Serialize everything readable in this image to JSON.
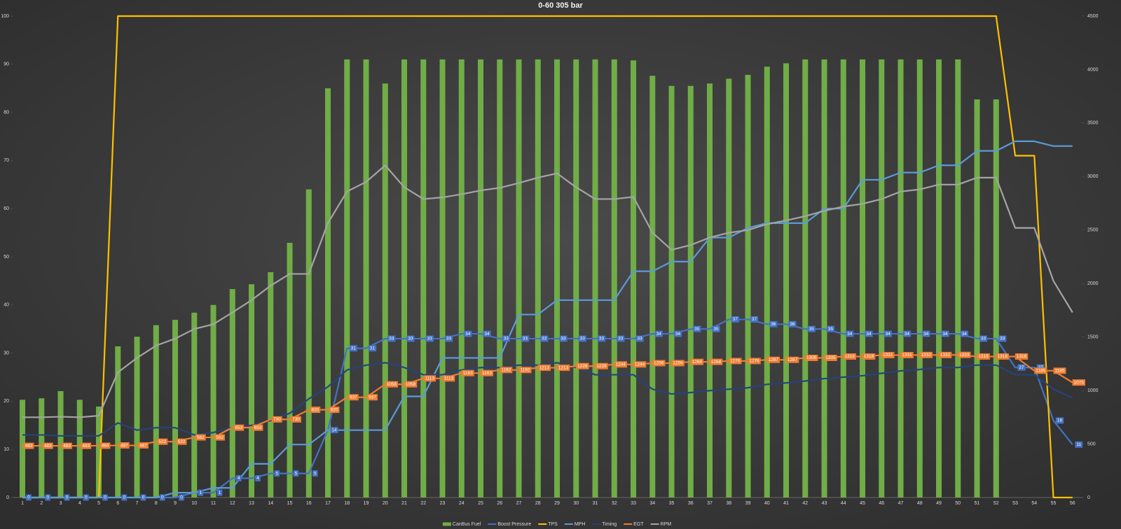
{
  "chart_data": {
    "type": "combo",
    "title": "0-60 305 bar",
    "categories": [
      "1",
      "2",
      "3",
      "4",
      "5",
      "6",
      "7",
      "8",
      "9",
      "10",
      "11",
      "12",
      "13",
      "14",
      "15",
      "16",
      "17",
      "18",
      "19",
      "20",
      "21",
      "22",
      "23",
      "24",
      "25",
      "26",
      "27",
      "28",
      "29",
      "30",
      "31",
      "32",
      "33",
      "34",
      "35",
      "36",
      "37",
      "38",
      "39",
      "40",
      "41",
      "42",
      "43",
      "44",
      "45",
      "46",
      "47",
      "48",
      "49",
      "50",
      "51",
      "52",
      "53",
      "54",
      "55",
      "56"
    ],
    "ylim": [
      0,
      100
    ],
    "yticks": [
      0,
      10,
      20,
      30,
      40,
      50,
      60,
      70,
      80,
      90,
      100
    ],
    "y2lim": [
      0,
      4500
    ],
    "y2ticks": [
      0,
      500,
      1000,
      1500,
      2000,
      2500,
      3000,
      3500,
      4000,
      4500
    ],
    "legend": "bottom",
    "series": [
      {
        "name": "CanBus Fuel",
        "type": "bar",
        "color": "#70ad47",
        "values": [
          20.3,
          20.6,
          22.1,
          20.3,
          18.9,
          31.4,
          33.4,
          35.8,
          36.9,
          38.4,
          40,
          43.3,
          44.3,
          46.8,
          52.9,
          64,
          85,
          91,
          91,
          86,
          91,
          91,
          91,
          91,
          91,
          91,
          91,
          91,
          91,
          91,
          91,
          91,
          90.8,
          87.6,
          85.5,
          85.5,
          86,
          87,
          87.8,
          89.5,
          90.2,
          91,
          91,
          91,
          91,
          91,
          91,
          91,
          91,
          91,
          82.7,
          82.7,
          null,
          null,
          null,
          null
        ]
      },
      {
        "name": "Boost Pressure",
        "type": "line",
        "color": "#4472c4",
        "data_labels": true,
        "values": [
          0,
          0,
          0,
          0,
          0,
          0,
          0,
          0,
          0,
          1,
          1,
          4,
          4,
          5,
          5,
          5,
          14,
          31,
          31,
          33,
          33,
          33,
          33,
          34,
          34,
          33,
          33,
          33,
          33,
          33,
          33,
          33,
          33,
          34,
          34,
          35,
          35,
          37,
          37,
          36,
          36,
          35,
          35,
          34,
          34,
          34,
          34,
          34,
          34,
          34,
          33,
          33,
          27,
          27,
          16,
          11
        ]
      },
      {
        "name": "TPS",
        "type": "line",
        "color": "#ffc000",
        "values": [
          0,
          0,
          0,
          0,
          0,
          100,
          100,
          100,
          100,
          100,
          100,
          100,
          100,
          100,
          100,
          100,
          100,
          100,
          100,
          100,
          100,
          100,
          100,
          100,
          100,
          100,
          100,
          100,
          100,
          100,
          100,
          100,
          100,
          100,
          100,
          100,
          100,
          100,
          100,
          100,
          100,
          100,
          100,
          100,
          100,
          100,
          100,
          100,
          100,
          100,
          100,
          100,
          71,
          71,
          0,
          0
        ]
      },
      {
        "name": "MPH",
        "type": "line",
        "color": "#5b9bd5",
        "values": [
          0,
          0,
          0,
          0,
          0,
          0,
          0,
          0,
          1,
          1,
          2,
          2,
          7,
          7,
          11,
          11,
          14,
          14,
          14,
          14,
          21,
          21,
          29,
          29,
          29,
          29,
          38,
          38,
          41,
          41,
          41,
          41,
          47,
          47,
          49,
          49,
          54,
          54,
          56,
          57,
          57,
          57,
          60,
          60,
          66,
          66,
          67.5,
          67.5,
          69,
          69,
          72,
          72,
          74,
          74,
          73,
          73
        ]
      },
      {
        "name": "Timing",
        "type": "line",
        "color": "#264478",
        "values": [
          13,
          13,
          12.8,
          12.8,
          12.8,
          15.5,
          14,
          14.5,
          14.5,
          13,
          13.5,
          14.5,
          15,
          16,
          17.5,
          20.5,
          23,
          26.5,
          27.5,
          28,
          27,
          25.5,
          25.5,
          26.5,
          27,
          27,
          27.5,
          27.5,
          28,
          27,
          25.5,
          25.5,
          25.5,
          22.5,
          21.5,
          21.8,
          22.2,
          22.5,
          22.8,
          23.5,
          23.8,
          24.2,
          24.7,
          25,
          25.3,
          25.8,
          26.3,
          26.6,
          27,
          27,
          27.5,
          27.5,
          25.5,
          25.5,
          22.5,
          20.7
        ]
      },
      {
        "name": "EGT",
        "type": "line",
        "color": "#ed7d31",
        "axis": "y2",
        "data_labels": true,
        "values": [
          483,
          483,
          483,
          483,
          484,
          487,
          487,
          522,
          522,
          562,
          562,
          653,
          653,
          730,
          730,
          820,
          820,
          937,
          937,
          1058,
          1058,
          1113,
          1113,
          1163,
          1163,
          1192,
          1192,
          1213,
          1213,
          1228,
          1228,
          1244,
          1244,
          1256,
          1256,
          1268,
          1268,
          1276,
          1276,
          1287,
          1287,
          1305,
          1305,
          1318,
          1318,
          1331,
          1331,
          1332,
          1332,
          1333,
          1318,
          1318,
          1318,
          1185,
          1185,
          1075
        ]
      },
      {
        "name": "RPM",
        "type": "line",
        "color": "#a5a5a5",
        "axis": "y2",
        "values": [
          750,
          750,
          755,
          750,
          765,
          1170,
          1305,
          1420,
          1485,
          1575,
          1620,
          1730,
          1845,
          1980,
          2090,
          2090,
          2565,
          2860,
          2950,
          3105,
          2900,
          2790,
          2805,
          2835,
          2870,
          2895,
          2940,
          2990,
          3030,
          2900,
          2790,
          2790,
          2810,
          2475,
          2315,
          2360,
          2430,
          2475,
          2500,
          2555,
          2590,
          2630,
          2680,
          2720,
          2745,
          2790,
          2860,
          2880,
          2925,
          2925,
          2990,
          2990,
          2520,
          2520,
          2025,
          1730
        ]
      }
    ]
  }
}
